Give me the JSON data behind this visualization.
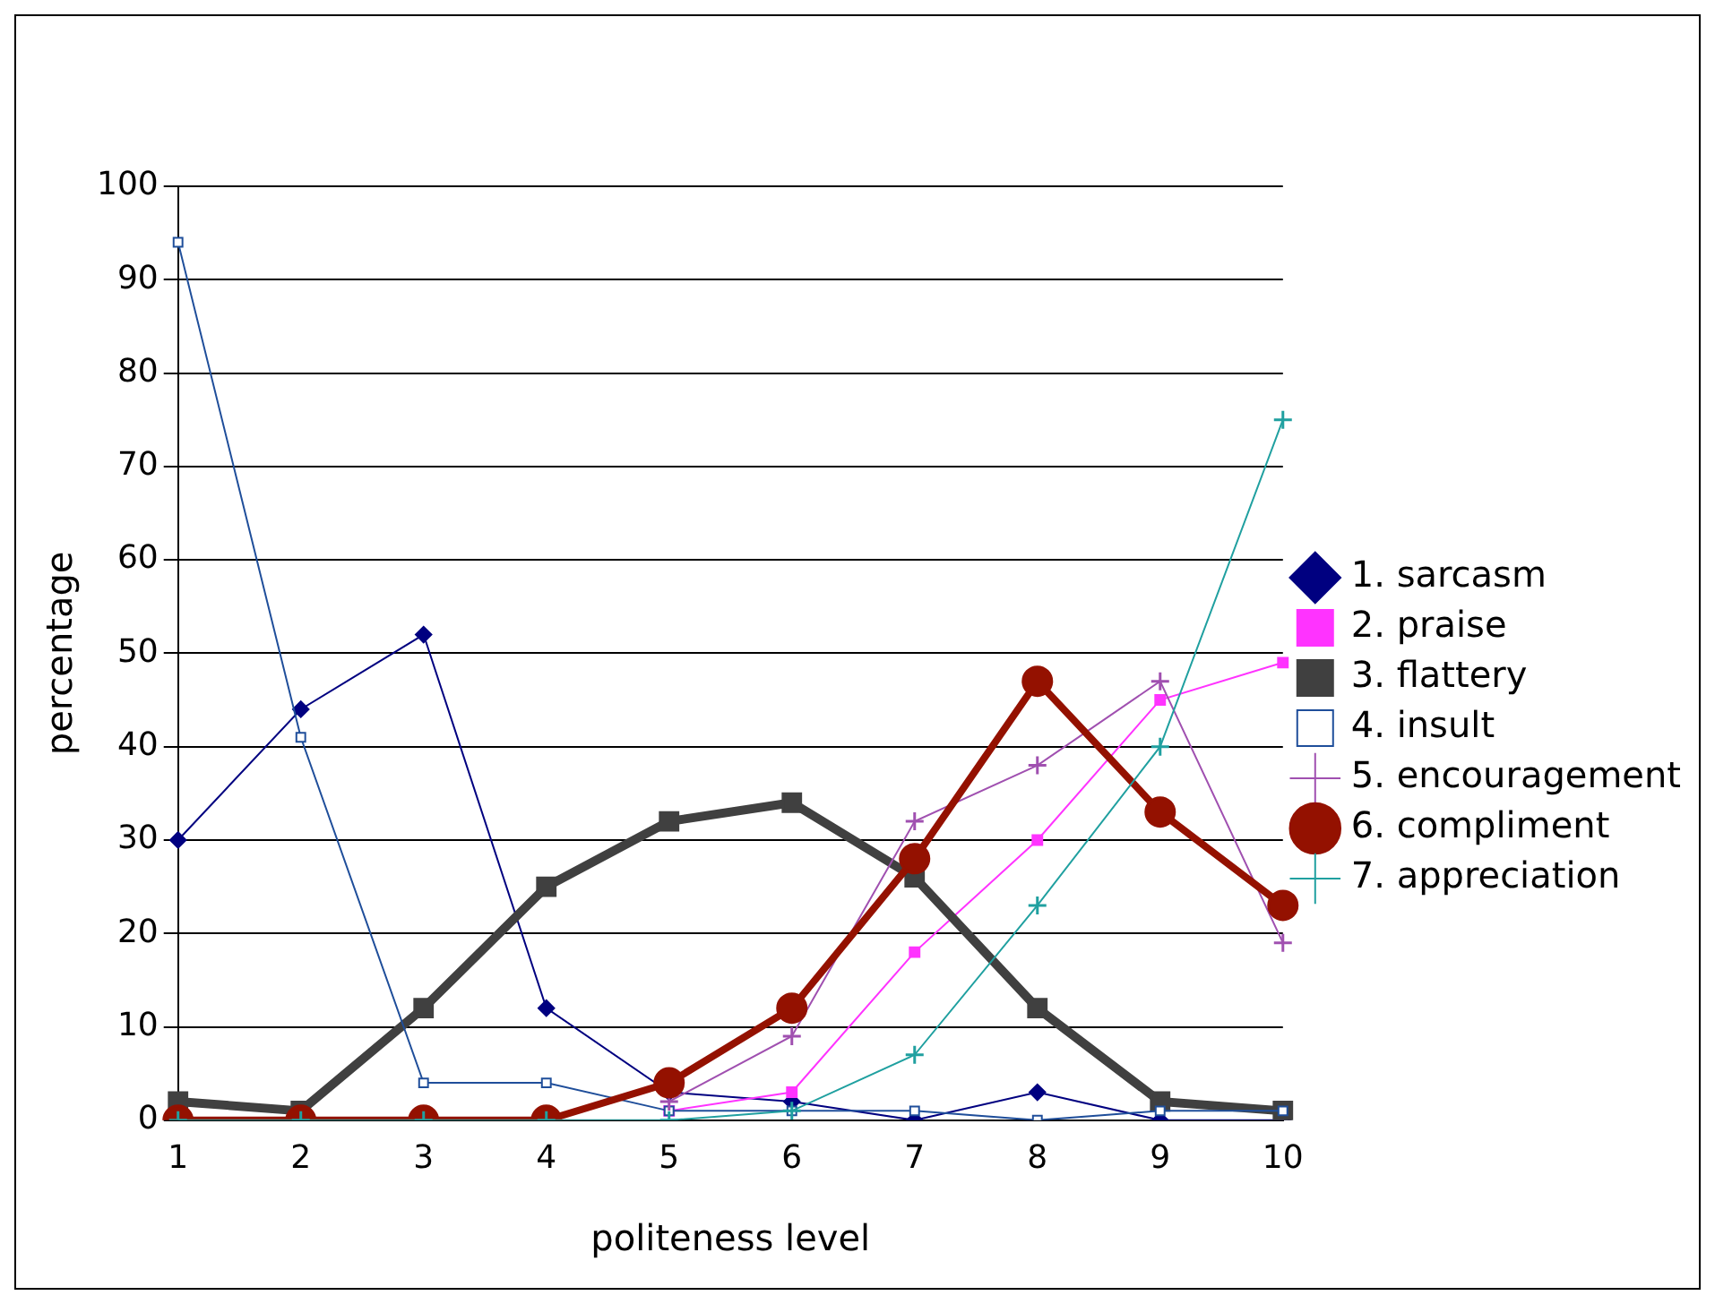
{
  "chart_data": {
    "type": "line",
    "xlabel": "politeness level",
    "ylabel": "percentage",
    "categories": [
      "1",
      "2",
      "3",
      "4",
      "5",
      "6",
      "7",
      "8",
      "9",
      "10"
    ],
    "ylim": [
      0,
      100
    ],
    "yticks": [
      0,
      10,
      20,
      30,
      40,
      50,
      60,
      70,
      80,
      90,
      100
    ],
    "grid": "y",
    "legend": "right",
    "series": [
      {
        "name": "1. sarcasm",
        "color": "#000080",
        "marker": "diamond",
        "values": [
          30,
          44,
          52,
          12,
          3,
          2,
          0,
          3,
          0,
          0
        ]
      },
      {
        "name": "2. praise",
        "color": "#ff33ff",
        "marker": "square",
        "values": [
          null,
          null,
          null,
          null,
          1,
          3,
          18,
          30,
          45,
          49
        ]
      },
      {
        "name": "3. flattery",
        "color": "#404040",
        "marker": "square",
        "values": [
          2,
          1,
          12,
          25,
          32,
          34,
          26,
          12,
          2,
          1
        ]
      },
      {
        "name": "4. insult",
        "color": "#1f4e9a",
        "marker": "square",
        "values": [
          94,
          41,
          4,
          4,
          1,
          1,
          1,
          0,
          1,
          1
        ]
      },
      {
        "name": "5. encouragement",
        "color": "#a050b0",
        "marker": "cross",
        "values": [
          null,
          null,
          null,
          null,
          2,
          9,
          32,
          38,
          47,
          19
        ]
      },
      {
        "name": "6. compliment",
        "color": "#941100",
        "marker": "circle",
        "values": [
          0,
          0,
          0,
          0,
          4,
          12,
          28,
          47,
          33,
          23
        ]
      },
      {
        "name": "7. appreciation",
        "color": "#20a0a0",
        "marker": "cross",
        "values": [
          0,
          0,
          0,
          0,
          0,
          1,
          7,
          23,
          40,
          75
        ]
      }
    ]
  }
}
